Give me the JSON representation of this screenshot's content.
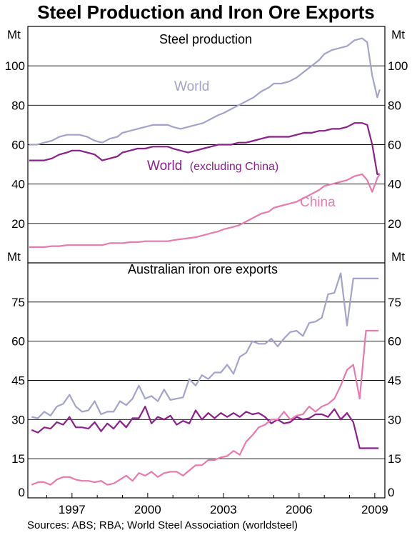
{
  "title": "Steel Production and Iron Ore Exports",
  "source": "Sources: ABS; RBA; World Steel Association (worldsteel)",
  "colors": {
    "world": "#A3A3CC",
    "world_ex_china": "#8B1F8B",
    "china": "#E87AAE",
    "australia_ore": "#A3A3CC"
  },
  "chart_data": [
    {
      "type": "line",
      "title": "Steel production",
      "ylabel": "Mt",
      "ylim": [
        0,
        120
      ],
      "yticks": [
        20,
        40,
        60,
        80,
        100
      ],
      "xlim": [
        1995.25,
        2009.4
      ],
      "grid": true,
      "series_labels": {
        "world": "World",
        "world_ex_china_main": "World",
        "world_ex_china_note": "(excluding China)",
        "china": "China"
      },
      "series": [
        {
          "name": "World",
          "key": "world",
          "x": [
            1995.3,
            1995.6,
            1995.9,
            1996.2,
            1996.5,
            1996.8,
            1997.0,
            1997.3,
            1997.6,
            1997.9,
            1998.2,
            1998.5,
            1998.8,
            1999.0,
            1999.3,
            1999.6,
            1999.9,
            2000.2,
            2000.5,
            2000.8,
            2001.0,
            2001.3,
            2001.6,
            2001.9,
            2002.2,
            2002.5,
            2002.8,
            2003.0,
            2003.3,
            2003.6,
            2003.9,
            2004.2,
            2004.5,
            2004.8,
            2005.0,
            2005.3,
            2005.6,
            2005.9,
            2006.2,
            2006.5,
            2006.8,
            2007.0,
            2007.3,
            2007.6,
            2007.9,
            2008.2,
            2008.5,
            2008.7,
            2008.9,
            2009.1,
            2009.2
          ],
          "values": [
            60,
            60,
            61,
            62,
            64,
            65,
            65,
            65,
            64,
            62,
            61,
            63,
            64,
            66,
            67,
            68,
            69,
            70,
            70,
            70,
            69,
            68,
            69,
            70,
            71,
            73,
            75,
            76,
            78,
            80,
            82,
            84,
            87,
            89,
            91,
            91,
            92,
            94,
            97,
            100,
            103,
            106,
            108,
            109,
            110,
            113,
            114,
            112,
            95,
            84,
            88
          ]
        },
        {
          "name": "World",
          "key": "world_ex_china",
          "x": [
            1995.3,
            1995.6,
            1995.9,
            1996.2,
            1996.5,
            1996.8,
            1997.0,
            1997.3,
            1997.6,
            1997.9,
            1998.2,
            1998.5,
            1998.8,
            1999.0,
            1999.3,
            1999.6,
            1999.9,
            2000.2,
            2000.5,
            2000.8,
            2001.0,
            2001.3,
            2001.6,
            2001.9,
            2002.2,
            2002.5,
            2002.8,
            2003.0,
            2003.3,
            2003.6,
            2003.9,
            2004.2,
            2004.5,
            2004.8,
            2005.0,
            2005.3,
            2005.6,
            2005.9,
            2006.2,
            2006.5,
            2006.8,
            2007.0,
            2007.3,
            2007.6,
            2007.9,
            2008.2,
            2008.5,
            2008.7,
            2008.9,
            2009.1,
            2009.2
          ],
          "values": [
            52,
            52,
            52,
            53,
            55,
            56,
            57,
            57,
            56,
            55,
            52,
            53,
            54,
            56,
            57,
            58,
            58,
            59,
            59,
            59,
            58,
            57,
            56,
            57,
            58,
            59,
            60,
            60,
            60,
            61,
            61,
            62,
            63,
            64,
            64,
            64,
            64,
            65,
            66,
            66,
            67,
            67,
            68,
            68,
            69,
            71,
            71,
            70,
            60,
            45,
            45
          ]
        },
        {
          "name": "China",
          "key": "china",
          "x": [
            1995.3,
            1995.6,
            1995.9,
            1996.2,
            1996.5,
            1996.8,
            1997.0,
            1997.3,
            1997.6,
            1997.9,
            1998.2,
            1998.5,
            1998.8,
            1999.0,
            1999.3,
            1999.6,
            1999.9,
            2000.2,
            2000.5,
            2000.8,
            2001.0,
            2001.3,
            2001.6,
            2001.9,
            2002.2,
            2002.5,
            2002.8,
            2003.0,
            2003.3,
            2003.6,
            2003.9,
            2004.2,
            2004.5,
            2004.8,
            2005.0,
            2005.3,
            2005.6,
            2005.9,
            2006.2,
            2006.5,
            2006.8,
            2007.0,
            2007.3,
            2007.6,
            2007.9,
            2008.2,
            2008.5,
            2008.7,
            2008.9,
            2009.1,
            2009.2
          ],
          "values": [
            8,
            8,
            8,
            8.5,
            8.5,
            9,
            9,
            9,
            9,
            9,
            9,
            10,
            10,
            10,
            10.5,
            10.5,
            11,
            11,
            11,
            11,
            11.5,
            12,
            12.5,
            13,
            14,
            15,
            16,
            17,
            18,
            19,
            21,
            23,
            25,
            26,
            28,
            29,
            30,
            31,
            33,
            35,
            37,
            39,
            40,
            41,
            42,
            44,
            45,
            42,
            36,
            43,
            45
          ]
        }
      ]
    },
    {
      "type": "line",
      "title": "Australian iron ore exports",
      "ylabel": "Mt",
      "ylim": [
        0,
        90
      ],
      "yticks": [
        0,
        15,
        30,
        45,
        60,
        75
      ],
      "xlim": [
        1995.25,
        2009.4
      ],
      "xticks": [
        "1997",
        "2000",
        "2003",
        "2006",
        "2009"
      ],
      "xtick_values": [
        1997,
        2000,
        2003,
        2006,
        2009
      ],
      "grid": true,
      "series": [
        {
          "key": "aus_grey",
          "x": [
            1995.4,
            1995.65,
            1995.9,
            1996.15,
            1996.4,
            1996.65,
            1996.9,
            1997.15,
            1997.4,
            1997.65,
            1997.9,
            1998.15,
            1998.4,
            1998.65,
            1998.9,
            1999.15,
            1999.4,
            1999.65,
            1999.9,
            2000.15,
            2000.4,
            2000.65,
            2000.9,
            2001.15,
            2001.4,
            2001.65,
            2001.9,
            2002.15,
            2002.4,
            2002.65,
            2002.9,
            2003.15,
            2003.4,
            2003.65,
            2003.9,
            2004.15,
            2004.4,
            2004.65,
            2004.9,
            2005.15,
            2005.4,
            2005.65,
            2005.9,
            2006.15,
            2006.4,
            2006.65,
            2006.9,
            2007.15,
            2007.4,
            2007.65,
            2007.9,
            2008.15,
            2008.4,
            2008.65,
            2008.9,
            2009.15
          ],
          "values": [
            31,
            30.5,
            33,
            31.5,
            35,
            36,
            39.5,
            35,
            33,
            33.5,
            37,
            32,
            33,
            33,
            37,
            35.5,
            38,
            43,
            38,
            39,
            37,
            41.5,
            37.5,
            38,
            38.5,
            45.5,
            43,
            47,
            45.5,
            48,
            48,
            51,
            47.5,
            54,
            55.5,
            60,
            59,
            59,
            61,
            58,
            61,
            63.5,
            64,
            62,
            67,
            67.5,
            69,
            78,
            78.5,
            86,
            66,
            84,
            84,
            84,
            84,
            84
          ]
        },
        {
          "key": "aus_purple",
          "x": [
            1995.4,
            1995.65,
            1995.9,
            1996.15,
            1996.4,
            1996.65,
            1996.9,
            1997.15,
            1997.4,
            1997.65,
            1997.9,
            1998.15,
            1998.4,
            1998.65,
            1998.9,
            1999.15,
            1999.4,
            1999.65,
            1999.9,
            2000.15,
            2000.4,
            2000.65,
            2000.9,
            2001.15,
            2001.4,
            2001.65,
            2001.9,
            2002.15,
            2002.4,
            2002.65,
            2002.9,
            2003.15,
            2003.4,
            2003.65,
            2003.9,
            2004.15,
            2004.4,
            2004.65,
            2004.9,
            2005.15,
            2005.4,
            2005.65,
            2005.9,
            2006.15,
            2006.4,
            2006.65,
            2006.9,
            2007.15,
            2007.4,
            2007.65,
            2007.9,
            2008.15,
            2008.4,
            2008.65,
            2008.9,
            2009.15
          ],
          "values": [
            26,
            25,
            27,
            26.5,
            29,
            28,
            31,
            27,
            27,
            26.5,
            29,
            25.5,
            28.5,
            26.5,
            29.5,
            27,
            30.5,
            30.5,
            35,
            28.5,
            31,
            30,
            31.5,
            28,
            29.5,
            28.5,
            33.5,
            30,
            32.5,
            30.5,
            32.5,
            31,
            32.5,
            31,
            33,
            32,
            32.5,
            31,
            28.5,
            30,
            28.5,
            29,
            31,
            30,
            30.5,
            32,
            32,
            31,
            34,
            30,
            32.5,
            29,
            19,
            19,
            19,
            19
          ]
        },
        {
          "key": "aus_pink",
          "x": [
            1995.4,
            1995.65,
            1995.9,
            1996.15,
            1996.4,
            1996.65,
            1996.9,
            1997.15,
            1997.4,
            1997.65,
            1997.9,
            1998.15,
            1998.4,
            1998.65,
            1998.9,
            1999.15,
            1999.4,
            1999.65,
            1999.9,
            2000.15,
            2000.4,
            2000.65,
            2000.9,
            2001.15,
            2001.4,
            2001.65,
            2001.9,
            2002.15,
            2002.4,
            2002.65,
            2002.9,
            2003.15,
            2003.4,
            2003.65,
            2003.9,
            2004.15,
            2004.4,
            2004.65,
            2004.9,
            2005.15,
            2005.4,
            2005.65,
            2005.9,
            2006.15,
            2006.4,
            2006.65,
            2006.9,
            2007.15,
            2007.4,
            2007.65,
            2007.9,
            2008.15,
            2008.4,
            2008.65,
            2008.9,
            2009.15
          ],
          "values": [
            5,
            6,
            6,
            5,
            7,
            8,
            8,
            7,
            6.5,
            6.5,
            6,
            6.5,
            5,
            5.5,
            7,
            8.5,
            6.5,
            9.5,
            8.5,
            10,
            8,
            9.5,
            10,
            10,
            8.5,
            10.5,
            12.5,
            12.5,
            14.5,
            14.5,
            15.5,
            16,
            18,
            16.5,
            21.5,
            24,
            27,
            28,
            30,
            30,
            33,
            30,
            31.5,
            32,
            35,
            33,
            35,
            36,
            38,
            43,
            49,
            51,
            38,
            64,
            64,
            64
          ]
        }
      ]
    }
  ]
}
